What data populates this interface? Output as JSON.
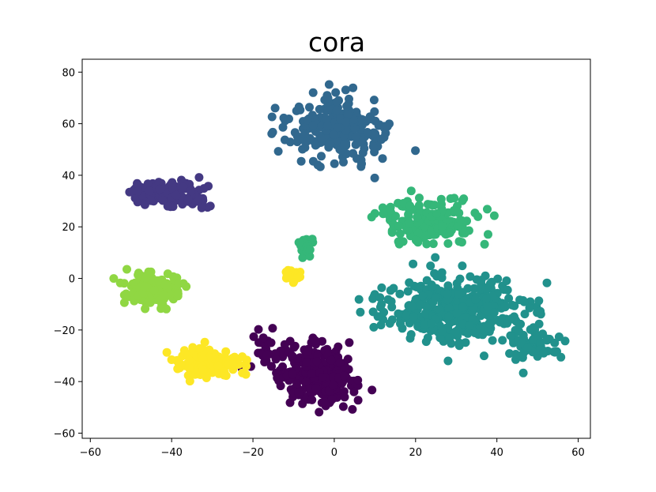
{
  "chart_data": {
    "type": "scatter",
    "title": "cora",
    "xlabel": "",
    "ylabel": "",
    "xlim": [
      -62,
      63
    ],
    "ylim": [
      -62,
      85
    ],
    "xticks": [
      -60,
      -40,
      -20,
      0,
      20,
      40,
      60
    ],
    "yticks": [
      -60,
      -40,
      -20,
      0,
      20,
      40,
      60,
      80
    ],
    "xtick_labels": [
      "−60",
      "−40",
      "−20",
      "0",
      "20",
      "40",
      "60"
    ],
    "ytick_labels": [
      "−60",
      "−40",
      "−20",
      "0",
      "20",
      "40",
      "60",
      "80"
    ],
    "grid": false,
    "colormap": "viridis",
    "classes": [
      {
        "class": 0,
        "color": "#440154",
        "clusters": [
          {
            "cx": -4,
            "cy": -38,
            "sx": 8,
            "sy": 9,
            "n": 260
          },
          {
            "cx": -16,
            "cy": -28,
            "sx": 6,
            "sy": 6,
            "n": 40
          }
        ]
      },
      {
        "class": 1,
        "color": "#443983",
        "clusters": [
          {
            "cx": -40,
            "cy": 33,
            "sx": 8,
            "sy": 4,
            "n": 140
          }
        ]
      },
      {
        "class": 2,
        "color": "#31688e",
        "clusters": [
          {
            "cx": 1,
            "cy": 58,
            "sx": 10,
            "sy": 10,
            "n": 250
          }
        ]
      },
      {
        "class": 3,
        "color": "#21918c",
        "clusters": [
          {
            "cx": 30,
            "cy": -12,
            "sx": 15,
            "sy": 11,
            "n": 380
          },
          {
            "cx": 48,
            "cy": -25,
            "sx": 7,
            "sy": 7,
            "n": 60
          }
        ]
      },
      {
        "class": 4,
        "color": "#35b779",
        "clusters": [
          {
            "cx": 24,
            "cy": 22,
            "sx": 10,
            "sy": 7,
            "n": 170
          },
          {
            "cx": -7,
            "cy": 13,
            "sx": 2,
            "sy": 3,
            "n": 20
          }
        ]
      },
      {
        "class": 5,
        "color": "#90d743",
        "clusters": [
          {
            "cx": -44,
            "cy": -4,
            "sx": 6,
            "sy": 5,
            "n": 180
          }
        ]
      },
      {
        "class": 6,
        "color": "#fde725",
        "clusters": [
          {
            "cx": -31,
            "cy": -33,
            "sx": 7,
            "sy": 5,
            "n": 110
          },
          {
            "cx": -10,
            "cy": 1,
            "sx": 2,
            "sy": 2,
            "n": 25
          }
        ]
      }
    ]
  }
}
